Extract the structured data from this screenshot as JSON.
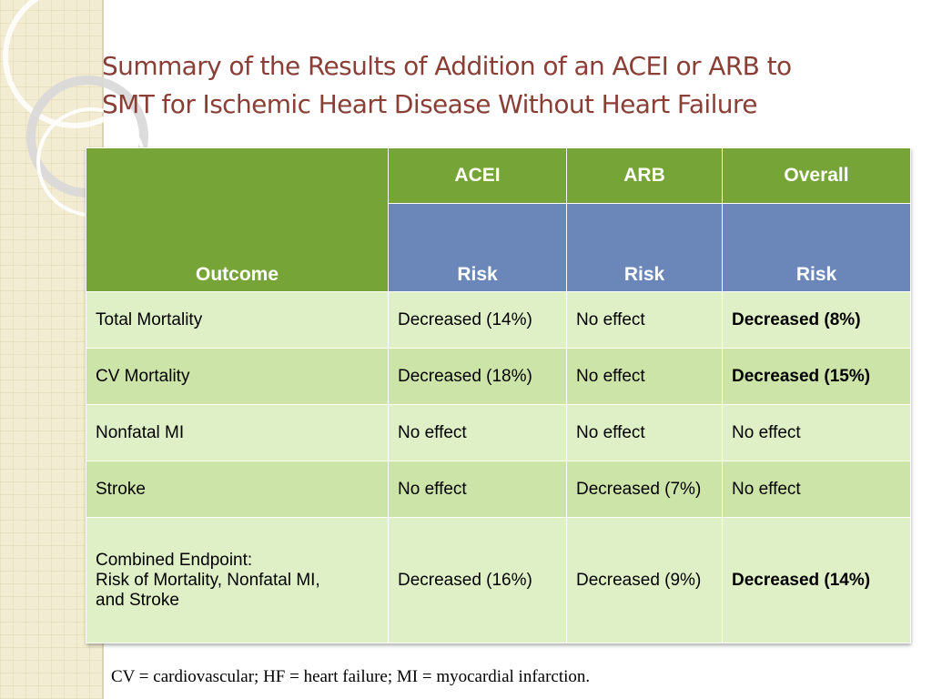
{
  "slide": {
    "title_line1": "Summary of the Results of Addition of an ACEI or ARB to",
    "title_line2": "SMT for Ischemic Heart Disease Without Heart Failure",
    "footnote": "CV = cardiovascular; HF = heart failure; MI = myocardial infarction."
  },
  "colors": {
    "title": "#8a3f36",
    "header_green": "#77a436",
    "header_blue": "#6b86b9",
    "row_light": "#e0f0c6",
    "row_dark": "#cde4a8"
  },
  "table": {
    "outcome_header": "Outcome",
    "groups": [
      "ACEI",
      "ARB",
      "Overall"
    ],
    "subheaders": [
      "Risk",
      "Risk",
      "Risk"
    ],
    "rows": [
      {
        "outcome": [
          "Total Mortality"
        ],
        "acei": "Decreased (14%)",
        "arb": "No effect",
        "overall": "Decreased (8%)"
      },
      {
        "outcome": [
          "CV Mortality"
        ],
        "acei": "Decreased (18%)",
        "arb": "No effect",
        "overall": "Decreased (15%)"
      },
      {
        "outcome": [
          "Nonfatal MI"
        ],
        "acei": "No effect",
        "arb": "No effect",
        "overall": "No effect"
      },
      {
        "outcome": [
          "Stroke"
        ],
        "acei": "No effect",
        "arb": "Decreased (7%)",
        "overall": "No effect"
      },
      {
        "outcome": [
          "Combined Endpoint:",
          "Risk of Mortality, Nonfatal MI,",
          "and Stroke"
        ],
        "acei": "Decreased (16%)",
        "arb": "Decreased (9%)",
        "overall": "Decreased (14%)"
      }
    ]
  }
}
